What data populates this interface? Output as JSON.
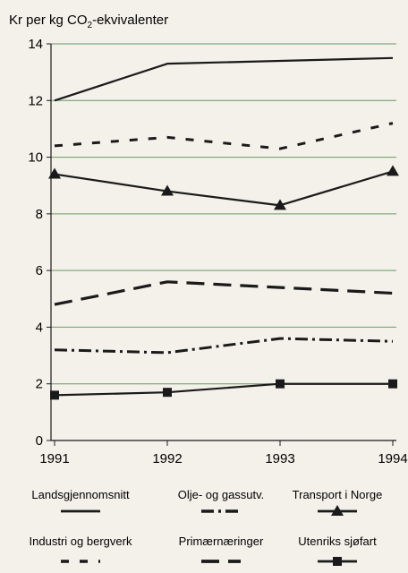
{
  "chart_data": {
    "type": "line",
    "ylabel_prefix": "Kr per kg CO",
    "ylabel_sub": "2",
    "ylabel_suffix": "-ekvivalenter",
    "xlabel": "",
    "x": [
      1991,
      1992,
      1993,
      1994
    ],
    "x_tick_labels": [
      "1991",
      "1992",
      "1993",
      "1994"
    ],
    "ylim": [
      0,
      14
    ],
    "y_ticks": [
      0,
      2,
      4,
      6,
      8,
      10,
      12,
      14
    ],
    "y_tick_labels": [
      "0",
      "2",
      "4",
      "6",
      "8",
      "10",
      "12",
      "14"
    ],
    "grid": true,
    "legend_position": "bottom",
    "series": [
      {
        "name": "Landsgjennomsnitt",
        "values": [
          12.0,
          13.3,
          13.4,
          13.5
        ],
        "style": "solid",
        "marker": "none"
      },
      {
        "name": "Olje- og gassutv.",
        "values": [
          3.2,
          3.1,
          3.6,
          3.5
        ],
        "style": "dashdot",
        "marker": "none"
      },
      {
        "name": "Transport i Norge",
        "values": [
          9.4,
          8.8,
          8.3,
          9.5
        ],
        "style": "solid",
        "marker": "triangle"
      },
      {
        "name": "Industri og bergverk",
        "values": [
          10.4,
          10.7,
          10.3,
          11.2
        ],
        "style": "dashed-short",
        "marker": "none"
      },
      {
        "name": "Primærnæringer",
        "values": [
          4.8,
          5.6,
          5.4,
          5.2
        ],
        "style": "dashed-long",
        "marker": "none"
      },
      {
        "name": "Utenriks sjøfart",
        "values": [
          1.6,
          1.7,
          2.0,
          2.0
        ],
        "style": "solid",
        "marker": "square"
      }
    ],
    "colors": {
      "line": "#1a1a1a",
      "grid": "#3a7a3a",
      "background": "#f3f1ea"
    }
  }
}
